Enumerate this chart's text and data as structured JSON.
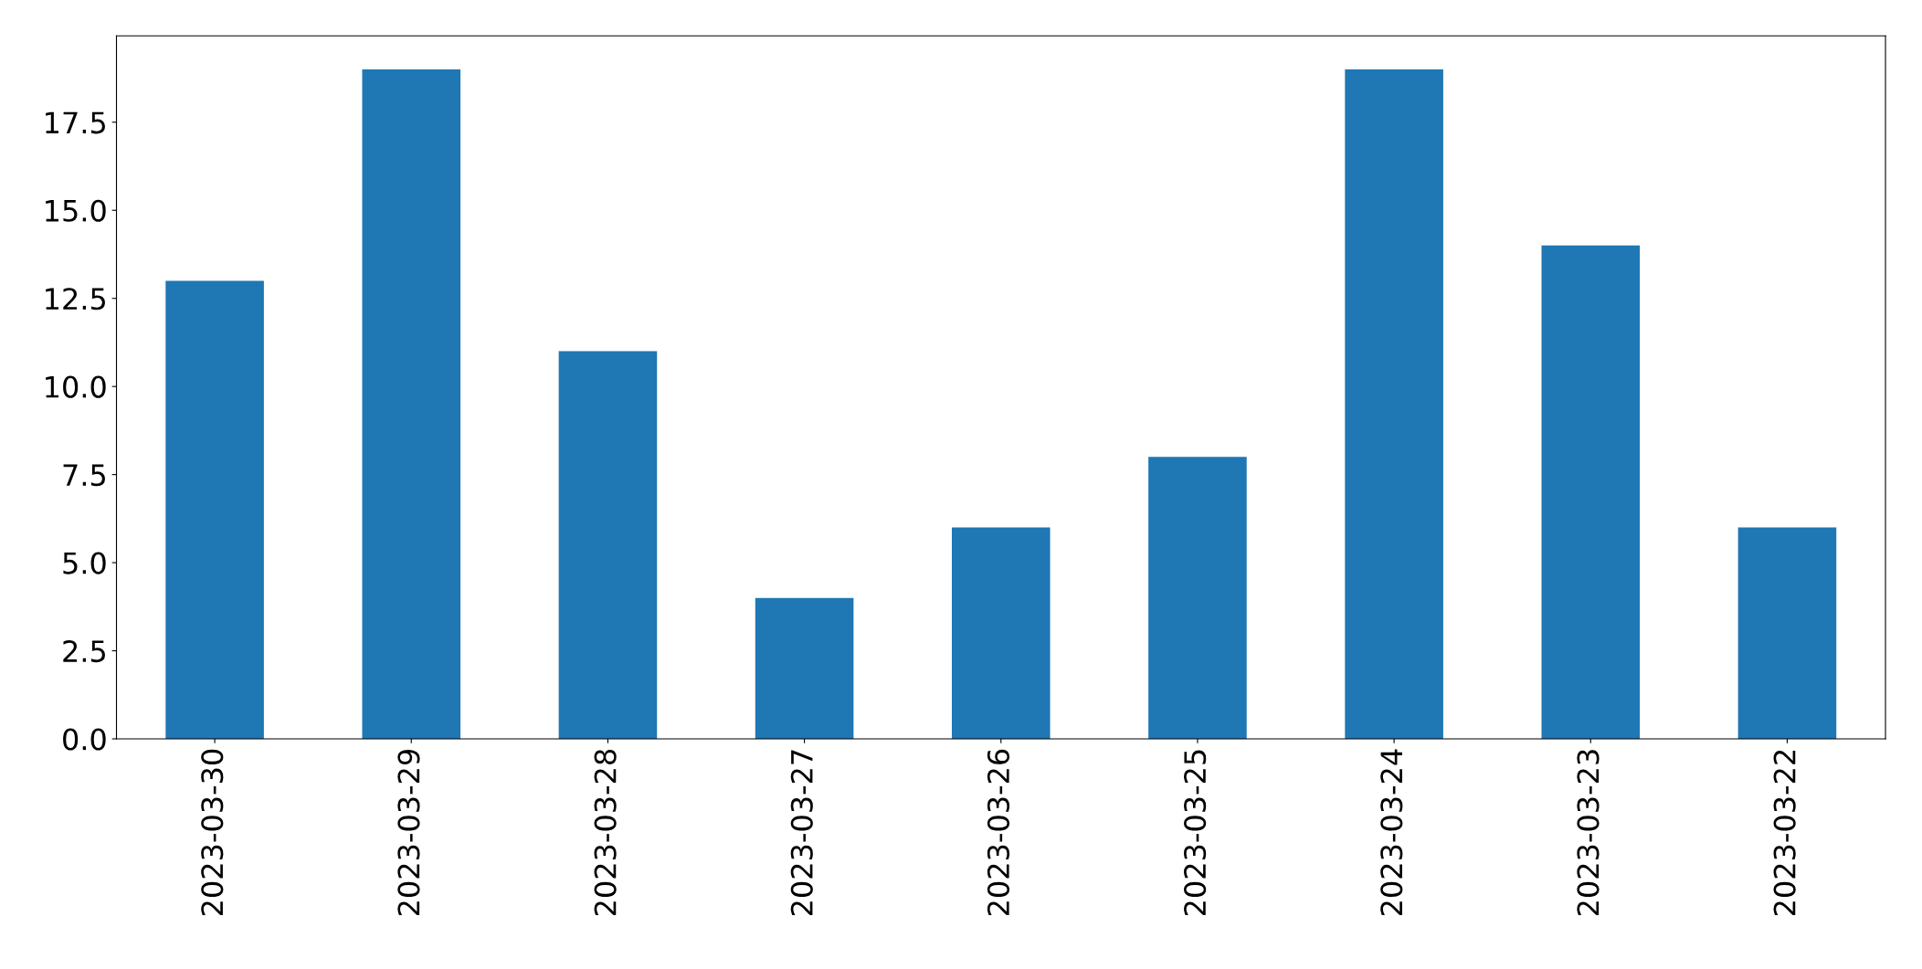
{
  "chart_data": {
    "type": "bar",
    "categories": [
      "2023-03-30",
      "2023-03-29",
      "2023-03-28",
      "2023-03-27",
      "2023-03-26",
      "2023-03-25",
      "2023-03-24",
      "2023-03-23",
      "2023-03-22"
    ],
    "values": [
      13,
      19,
      11,
      4,
      6,
      8,
      19,
      14,
      6
    ],
    "color": "#1f77b4",
    "ylim": [
      0,
      19.95
    ],
    "yticks": [
      {
        "value": 0,
        "label": "0.0"
      },
      {
        "value": 2.5,
        "label": "2.5"
      },
      {
        "value": 5,
        "label": "5.0"
      },
      {
        "value": 7.5,
        "label": "7.5"
      },
      {
        "value": 10,
        "label": "10.0"
      },
      {
        "value": 12.5,
        "label": "12.5"
      },
      {
        "value": 15,
        "label": "15.0"
      },
      {
        "value": 17.5,
        "label": "17.5"
      }
    ],
    "grid": false
  }
}
